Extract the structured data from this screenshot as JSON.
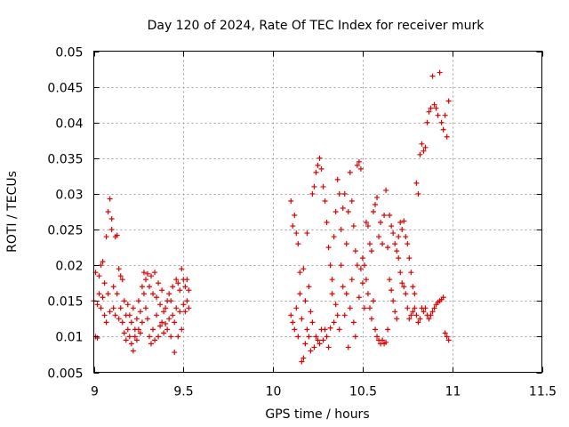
{
  "colors": {
    "series": "#dd0000",
    "grid": "#a0a0a0",
    "frame": "#000000"
  },
  "chart_data": {
    "type": "scatter",
    "title": "Day 120 of 2024, Rate Of TEC Index for receiver murk",
    "xlabel": "GPS time / hours",
    "ylabel": "ROTI / TECUs",
    "xlim": [
      9,
      11.5
    ],
    "ylim": [
      0.005,
      0.05
    ],
    "xticks": [
      9,
      9.5,
      10,
      10.5,
      11,
      11.5
    ],
    "xtick_labels": [
      "9",
      "9.5",
      "10",
      "10.5",
      "11",
      "11.5"
    ],
    "yticks": [
      0.005,
      0.01,
      0.015,
      0.02,
      0.025,
      0.03,
      0.035,
      0.04,
      0.045,
      0.05
    ],
    "ytick_labels": [
      "0.005",
      "0.01",
      "0.015",
      "0.02",
      "0.025",
      "0.03",
      "0.035",
      "0.04",
      "0.045",
      "0.05"
    ],
    "grid": true,
    "marker": "+",
    "series": [
      {
        "name": "ROTI",
        "points": [
          [
            9.0,
            0.015
          ],
          [
            9.01,
            0.01
          ],
          [
            9.01,
            0.019
          ],
          [
            9.02,
            0.0145
          ],
          [
            9.02,
            0.0098
          ],
          [
            9.03,
            0.016
          ],
          [
            9.03,
            0.0185
          ],
          [
            9.04,
            0.014
          ],
          [
            9.04,
            0.02
          ],
          [
            9.05,
            0.0205
          ],
          [
            9.05,
            0.0155
          ],
          [
            9.06,
            0.013
          ],
          [
            9.06,
            0.0175
          ],
          [
            9.07,
            0.024
          ],
          [
            9.07,
            0.012
          ],
          [
            9.08,
            0.0275
          ],
          [
            9.08,
            0.016
          ],
          [
            9.09,
            0.0293
          ],
          [
            9.09,
            0.0135
          ],
          [
            9.1,
            0.0265
          ],
          [
            9.1,
            0.025
          ],
          [
            9.11,
            0.014
          ],
          [
            9.11,
            0.017
          ],
          [
            9.12,
            0.024
          ],
          [
            9.12,
            0.013
          ],
          [
            9.13,
            0.0242
          ],
          [
            9.13,
            0.016
          ],
          [
            9.14,
            0.0125
          ],
          [
            9.14,
            0.0195
          ],
          [
            9.15,
            0.0185
          ],
          [
            9.15,
            0.014
          ],
          [
            9.16,
            0.018
          ],
          [
            9.16,
            0.012
          ],
          [
            9.17,
            0.015
          ],
          [
            9.17,
            0.0105
          ],
          [
            9.18,
            0.013
          ],
          [
            9.18,
            0.0095
          ],
          [
            9.19,
            0.0145
          ],
          [
            9.19,
            0.011
          ],
          [
            9.2,
            0.01
          ],
          [
            9.2,
            0.013
          ],
          [
            9.21,
            0.009
          ],
          [
            9.21,
            0.012
          ],
          [
            9.22,
            0.008
          ],
          [
            9.22,
            0.014
          ],
          [
            9.23,
            0.011
          ],
          [
            9.23,
            0.01
          ],
          [
            9.24,
            0.0125
          ],
          [
            9.24,
            0.0095
          ],
          [
            9.25,
            0.011
          ],
          [
            9.25,
            0.015
          ],
          [
            9.26,
            0.0135
          ],
          [
            9.26,
            0.0105
          ],
          [
            9.27,
            0.017
          ],
          [
            9.27,
            0.012
          ],
          [
            9.28,
            0.016
          ],
          [
            9.28,
            0.019
          ],
          [
            9.29,
            0.018
          ],
          [
            9.29,
            0.014
          ],
          [
            9.3,
            0.0188
          ],
          [
            9.3,
            0.0125
          ],
          [
            9.31,
            0.01
          ],
          [
            9.31,
            0.017
          ],
          [
            9.32,
            0.009
          ],
          [
            9.32,
            0.0185
          ],
          [
            9.33,
            0.016
          ],
          [
            9.33,
            0.011
          ],
          [
            9.34,
            0.019
          ],
          [
            9.34,
            0.0095
          ],
          [
            9.35,
            0.0155
          ],
          [
            9.35,
            0.013
          ],
          [
            9.36,
            0.0175
          ],
          [
            9.36,
            0.01
          ],
          [
            9.37,
            0.0145
          ],
          [
            9.37,
            0.0115
          ],
          [
            9.38,
            0.012
          ],
          [
            9.38,
            0.0165
          ],
          [
            9.39,
            0.0135
          ],
          [
            9.39,
            0.0105
          ],
          [
            9.4,
            0.014
          ],
          [
            9.4,
            0.0118
          ],
          [
            9.41,
            0.015
          ],
          [
            9.41,
            0.011
          ],
          [
            9.42,
            0.0125
          ],
          [
            9.42,
            0.016
          ],
          [
            9.43,
            0.01
          ],
          [
            9.43,
            0.015
          ],
          [
            9.44,
            0.013
          ],
          [
            9.44,
            0.017
          ],
          [
            9.45,
            0.0078
          ],
          [
            9.45,
            0.012
          ],
          [
            9.46,
            0.018
          ],
          [
            9.46,
            0.014
          ],
          [
            9.47,
            0.0175
          ],
          [
            9.47,
            0.01
          ],
          [
            9.48,
            0.0135
          ],
          [
            9.48,
            0.0165
          ],
          [
            9.49,
            0.0195
          ],
          [
            9.49,
            0.011
          ],
          [
            9.5,
            0.018
          ],
          [
            9.5,
            0.0145
          ],
          [
            9.51,
            0.017
          ],
          [
            9.51,
            0.0135
          ],
          [
            9.52,
            0.015
          ],
          [
            9.52,
            0.018
          ],
          [
            9.53,
            0.014
          ],
          [
            9.53,
            0.0165
          ],
          [
            10.1,
            0.029
          ],
          [
            10.1,
            0.013
          ],
          [
            10.11,
            0.0255
          ],
          [
            10.11,
            0.012
          ],
          [
            10.12,
            0.027
          ],
          [
            10.12,
            0.011
          ],
          [
            10.13,
            0.0245
          ],
          [
            10.13,
            0.014
          ],
          [
            10.14,
            0.023
          ],
          [
            10.14,
            0.01
          ],
          [
            10.15,
            0.019
          ],
          [
            10.15,
            0.016
          ],
          [
            10.16,
            0.0065
          ],
          [
            10.16,
            0.0125
          ],
          [
            10.17,
            0.007
          ],
          [
            10.17,
            0.0195
          ],
          [
            10.18,
            0.015
          ],
          [
            10.18,
            0.009
          ],
          [
            10.19,
            0.0245
          ],
          [
            10.19,
            0.011
          ],
          [
            10.2,
            0.017
          ],
          [
            10.2,
            0.01
          ],
          [
            10.21,
            0.0135
          ],
          [
            10.21,
            0.008
          ],
          [
            10.22,
            0.03
          ],
          [
            10.22,
            0.012
          ],
          [
            10.23,
            0.031
          ],
          [
            10.23,
            0.0085
          ],
          [
            10.24,
            0.033
          ],
          [
            10.24,
            0.01
          ],
          [
            10.25,
            0.034
          ],
          [
            10.25,
            0.0095
          ],
          [
            10.26,
            0.035
          ],
          [
            10.26,
            0.009
          ],
          [
            10.27,
            0.0335
          ],
          [
            10.27,
            0.011
          ],
          [
            10.28,
            0.031
          ],
          [
            10.28,
            0.0095
          ],
          [
            10.29,
            0.029
          ],
          [
            10.29,
            0.011
          ],
          [
            10.3,
            0.026
          ],
          [
            10.3,
            0.01
          ],
          [
            10.31,
            0.0225
          ],
          [
            10.31,
            0.0085
          ],
          [
            10.32,
            0.02
          ],
          [
            10.32,
            0.0112
          ],
          [
            10.33,
            0.018
          ],
          [
            10.33,
            0.016
          ],
          [
            10.34,
            0.024
          ],
          [
            10.34,
            0.012
          ],
          [
            10.35,
            0.0275
          ],
          [
            10.35,
            0.0145
          ],
          [
            10.36,
            0.032
          ],
          [
            10.36,
            0.013
          ],
          [
            10.37,
            0.03
          ],
          [
            10.37,
            0.011
          ],
          [
            10.38,
            0.025
          ],
          [
            10.38,
            0.02
          ],
          [
            10.39,
            0.028
          ],
          [
            10.39,
            0.017
          ],
          [
            10.4,
            0.03
          ],
          [
            10.4,
            0.013
          ],
          [
            10.41,
            0.023
          ],
          [
            10.41,
            0.016
          ],
          [
            10.42,
            0.0275
          ],
          [
            10.42,
            0.0085
          ],
          [
            10.43,
            0.033
          ],
          [
            10.43,
            0.014
          ],
          [
            10.44,
            0.029
          ],
          [
            10.44,
            0.018
          ],
          [
            10.45,
            0.0255
          ],
          [
            10.45,
            0.012
          ],
          [
            10.46,
            0.022
          ],
          [
            10.46,
            0.01
          ],
          [
            10.47,
            0.034
          ],
          [
            10.47,
            0.02
          ],
          [
            10.48,
            0.0345
          ],
          [
            10.48,
            0.0155
          ],
          [
            10.49,
            0.0335
          ],
          [
            10.49,
            0.0195
          ],
          [
            10.5,
            0.021
          ],
          [
            10.5,
            0.0175
          ],
          [
            10.51,
            0.02
          ],
          [
            10.51,
            0.014
          ],
          [
            10.52,
            0.026
          ],
          [
            10.52,
            0.018
          ],
          [
            10.53,
            0.0255
          ],
          [
            10.53,
            0.016
          ],
          [
            10.54,
            0.023
          ],
          [
            10.54,
            0.014
          ],
          [
            10.55,
            0.022
          ],
          [
            10.55,
            0.0125
          ],
          [
            10.56,
            0.0275
          ],
          [
            10.56,
            0.015
          ],
          [
            10.57,
            0.0285
          ],
          [
            10.57,
            0.011
          ],
          [
            10.58,
            0.0295
          ],
          [
            10.58,
            0.01
          ],
          [
            10.59,
            0.024
          ],
          [
            10.59,
            0.0095
          ],
          [
            10.6,
            0.026
          ],
          [
            10.6,
            0.009
          ],
          [
            10.61,
            0.023
          ],
          [
            10.61,
            0.0095
          ],
          [
            10.62,
            0.027
          ],
          [
            10.62,
            0.009
          ],
          [
            10.63,
            0.0305
          ],
          [
            10.63,
            0.0092
          ],
          [
            10.64,
            0.0225
          ],
          [
            10.64,
            0.011
          ],
          [
            10.65,
            0.027
          ],
          [
            10.65,
            0.018
          ],
          [
            10.66,
            0.0255
          ],
          [
            10.66,
            0.0165
          ],
          [
            10.67,
            0.0245
          ],
          [
            10.67,
            0.015
          ],
          [
            10.68,
            0.023
          ],
          [
            10.68,
            0.0135
          ],
          [
            10.69,
            0.022
          ],
          [
            10.69,
            0.0125
          ],
          [
            10.7,
            0.024
          ],
          [
            10.7,
            0.021
          ],
          [
            10.71,
            0.026
          ],
          [
            10.71,
            0.019
          ],
          [
            10.72,
            0.025
          ],
          [
            10.72,
            0.0175
          ],
          [
            10.73,
            0.0262
          ],
          [
            10.73,
            0.017
          ],
          [
            10.74,
            0.024
          ],
          [
            10.74,
            0.016
          ],
          [
            10.75,
            0.023
          ],
          [
            10.75,
            0.014
          ],
          [
            10.76,
            0.021
          ],
          [
            10.76,
            0.0125
          ],
          [
            10.77,
            0.019
          ],
          [
            10.77,
            0.013
          ],
          [
            10.78,
            0.017
          ],
          [
            10.78,
            0.0135
          ],
          [
            10.79,
            0.016
          ],
          [
            10.79,
            0.014
          ],
          [
            10.8,
            0.0315
          ],
          [
            10.8,
            0.013
          ],
          [
            10.81,
            0.03
          ],
          [
            10.81,
            0.012
          ],
          [
            10.82,
            0.0355
          ],
          [
            10.82,
            0.0125
          ],
          [
            10.83,
            0.037
          ],
          [
            10.83,
            0.014
          ],
          [
            10.84,
            0.036
          ],
          [
            10.84,
            0.0135
          ],
          [
            10.85,
            0.0365
          ],
          [
            10.85,
            0.014
          ],
          [
            10.86,
            0.04
          ],
          [
            10.86,
            0.013
          ],
          [
            10.87,
            0.0415
          ],
          [
            10.87,
            0.0125
          ],
          [
            10.88,
            0.042
          ],
          [
            10.88,
            0.013
          ],
          [
            10.89,
            0.0465
          ],
          [
            10.89,
            0.0135
          ],
          [
            10.9,
            0.0425
          ],
          [
            10.9,
            0.014
          ],
          [
            10.91,
            0.042
          ],
          [
            10.91,
            0.0145
          ],
          [
            10.92,
            0.041
          ],
          [
            10.92,
            0.0148
          ],
          [
            10.93,
            0.047
          ],
          [
            10.93,
            0.015
          ],
          [
            10.94,
            0.04
          ],
          [
            10.94,
            0.0152
          ],
          [
            10.95,
            0.039
          ],
          [
            10.95,
            0.0155
          ],
          [
            10.96,
            0.041
          ],
          [
            10.96,
            0.0105
          ],
          [
            10.97,
            0.038
          ],
          [
            10.97,
            0.01
          ],
          [
            10.98,
            0.043
          ],
          [
            10.98,
            0.0095
          ]
        ]
      }
    ]
  }
}
